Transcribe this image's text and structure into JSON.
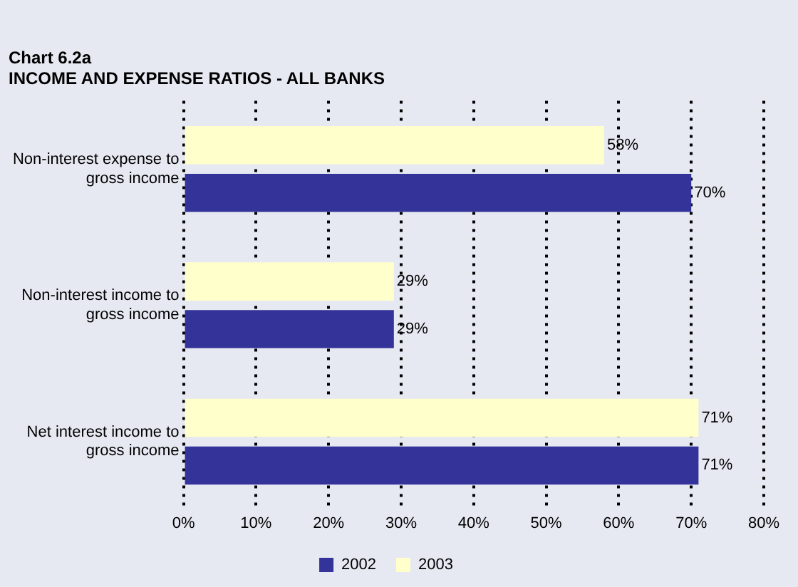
{
  "chart_data": {
    "type": "bar",
    "orientation": "horizontal",
    "title": "Chart 6.2a",
    "subtitle": "INCOME AND EXPENSE RATIOS - ALL BANKS",
    "categories": [
      "Non-interest expense to gross income",
      "Non-interest income to gross income",
      "Net interest income to gross income"
    ],
    "series": [
      {
        "name": "2002",
        "color": "#333399",
        "values": [
          70,
          29,
          71
        ],
        "value_labels": [
          "70%",
          "29%",
          "71%"
        ]
      },
      {
        "name": "2003",
        "color": "#ffffcc",
        "values": [
          58,
          29,
          71
        ],
        "value_labels": [
          "58%",
          "29%",
          "71%"
        ]
      }
    ],
    "xlim": [
      0,
      80
    ],
    "xticks": [
      {
        "value": 0,
        "label": "0%"
      },
      {
        "value": 10,
        "label": "10%"
      },
      {
        "value": 20,
        "label": "20%"
      },
      {
        "value": 30,
        "label": "30%"
      },
      {
        "value": 40,
        "label": "40%"
      },
      {
        "value": 50,
        "label": "50%"
      },
      {
        "value": 60,
        "label": "60%"
      },
      {
        "value": 70,
        "label": "70%"
      },
      {
        "value": 80,
        "label": "80%"
      }
    ],
    "grid": "x",
    "legend": "bottom"
  }
}
